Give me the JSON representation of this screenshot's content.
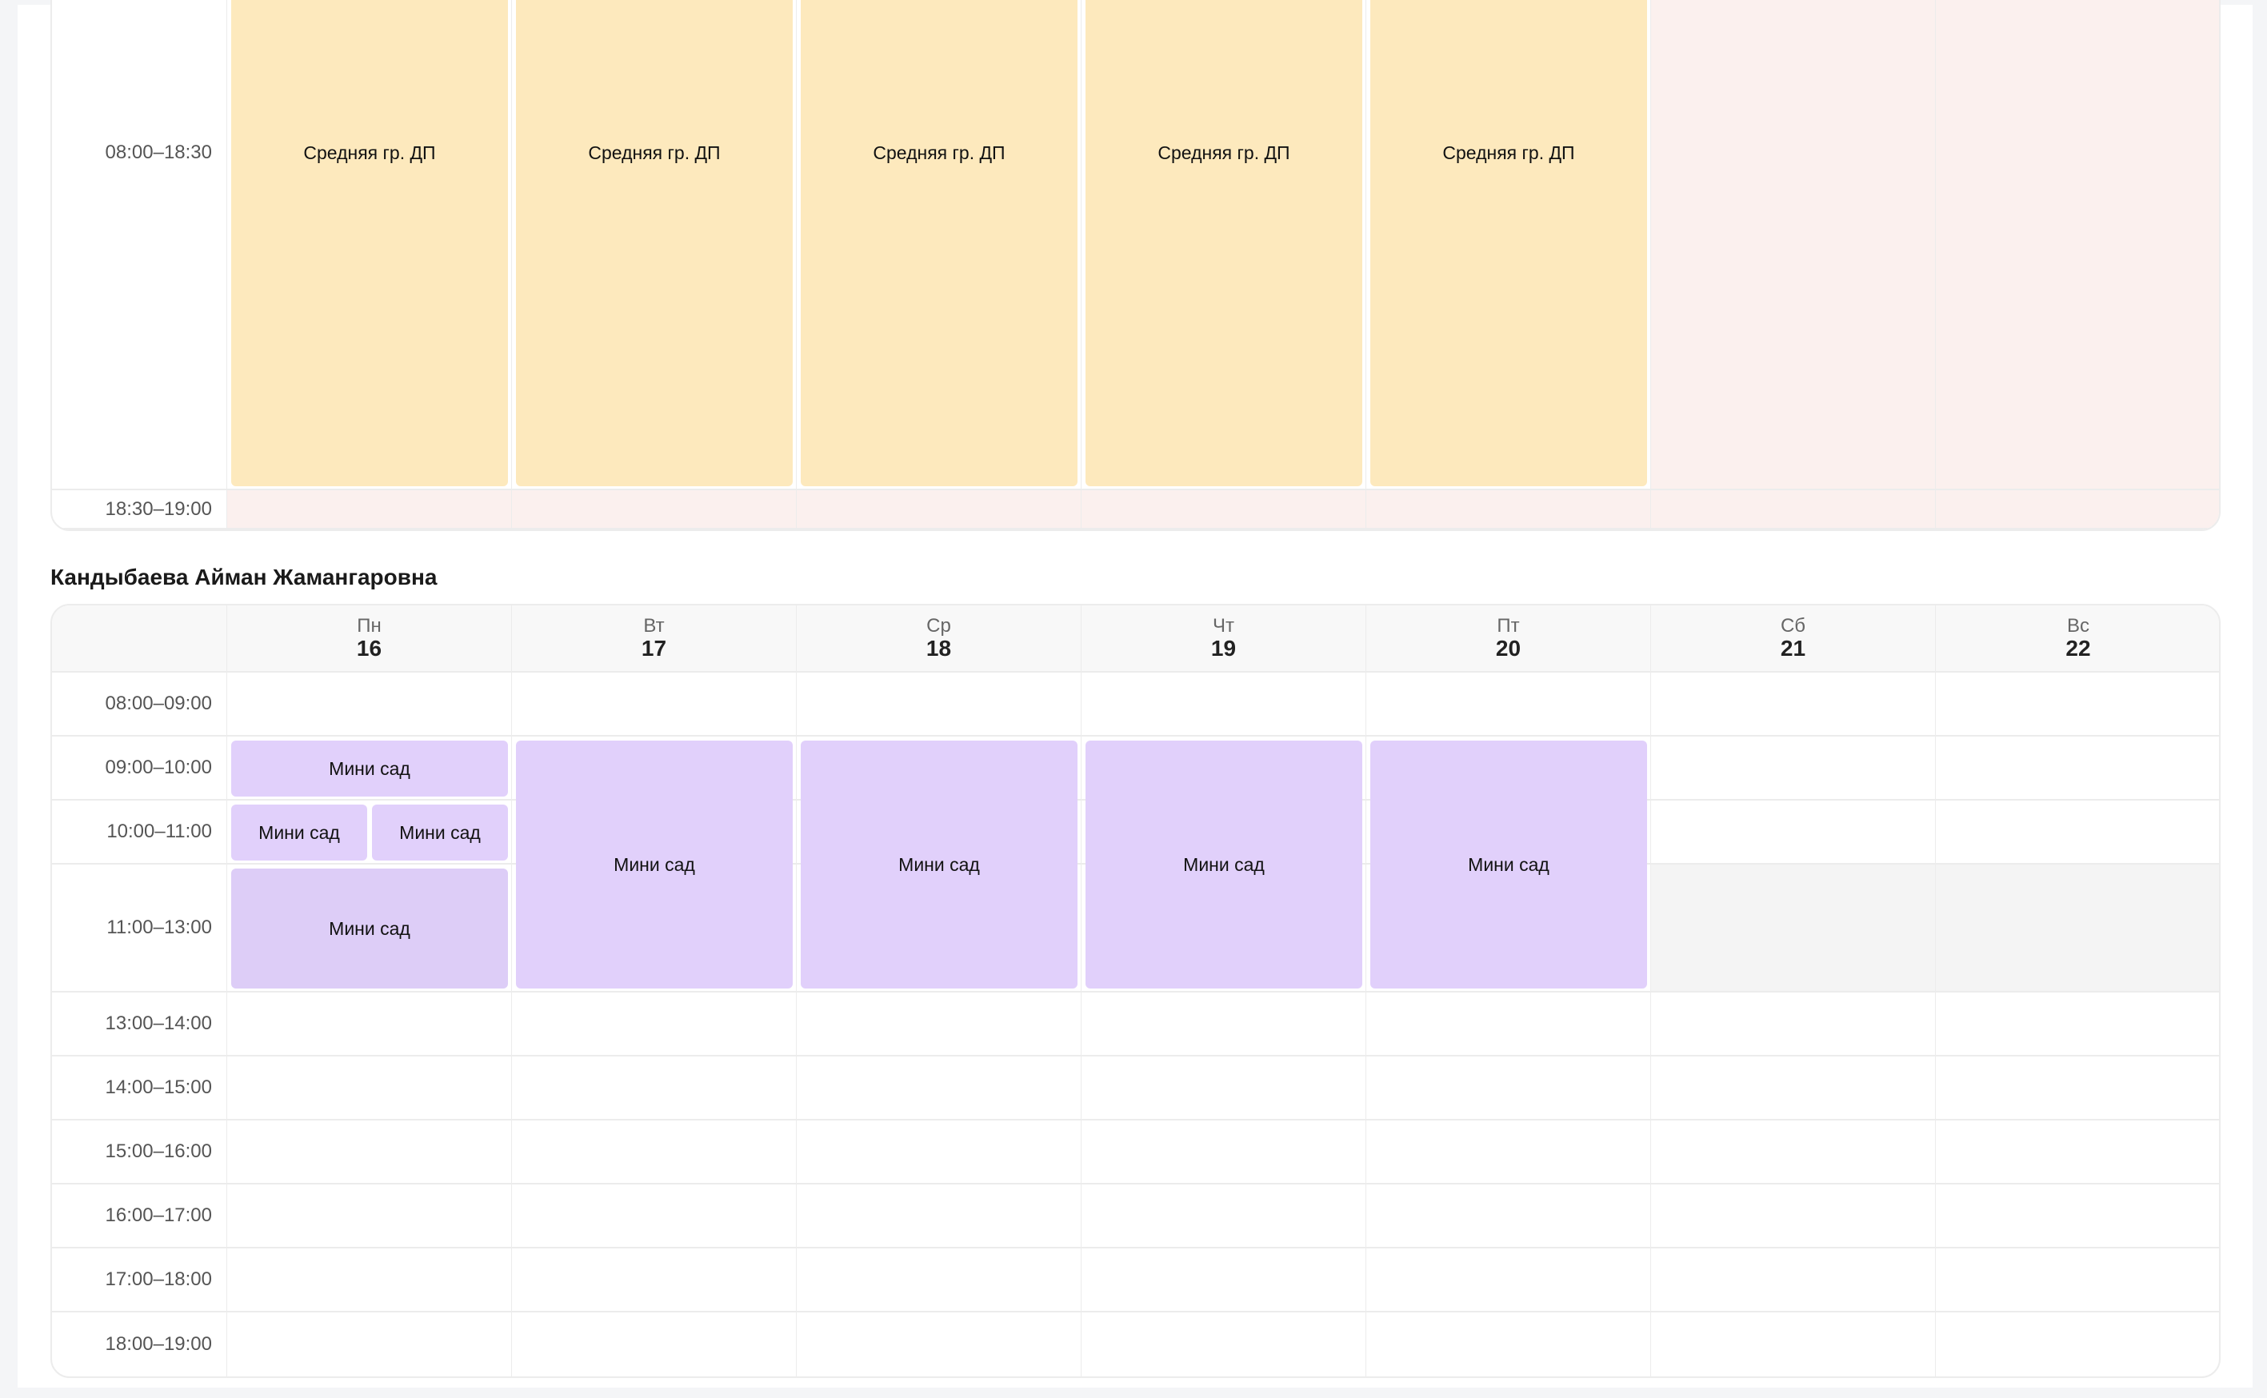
{
  "top_schedule": {
    "slots": [
      "08:00–18:30",
      "18:30–19:00"
    ],
    "days": 7,
    "closed_days": [
      5,
      6
    ],
    "closed_slots": [
      "18:30–19:00"
    ],
    "closed_color": "#fbf0ee",
    "event_color": "#fde9bd",
    "events": [
      {
        "day": 0,
        "start": "08:00–18:30",
        "end": "08:00–18:30",
        "label": "Средняя гр. ДП"
      },
      {
        "day": 1,
        "start": "08:00–18:30",
        "end": "08:00–18:30",
        "label": "Средняя гр. ДП"
      },
      {
        "day": 2,
        "start": "08:00–18:30",
        "end": "08:00–18:30",
        "label": "Средняя гр. ДП"
      },
      {
        "day": 3,
        "start": "08:00–18:30",
        "end": "08:00–18:30",
        "label": "Средняя гр. ДП"
      },
      {
        "day": 4,
        "start": "08:00–18:30",
        "end": "08:00–18:30",
        "label": "Средняя гр. ДП"
      }
    ]
  },
  "teacher": {
    "name": "Кандыбаева Айман Жамангаровна",
    "days": [
      {
        "weekday": "Пн",
        "date": "16"
      },
      {
        "weekday": "Вт",
        "date": "17"
      },
      {
        "weekday": "Ср",
        "date": "18"
      },
      {
        "weekday": "Чт",
        "date": "19"
      },
      {
        "weekday": "Пт",
        "date": "20"
      },
      {
        "weekday": "Сб",
        "date": "21"
      },
      {
        "weekday": "Вс",
        "date": "22"
      }
    ],
    "slots": [
      "08:00–09:00",
      "09:00–10:00",
      "10:00–11:00",
      "11:00–13:00",
      "13:00–14:00",
      "14:00–15:00",
      "15:00–16:00",
      "16:00–17:00",
      "17:00–18:00",
      "18:00–19:00"
    ],
    "blocked": [
      {
        "day": 5,
        "slot": "11:00–13:00"
      },
      {
        "day": 6,
        "slot": "11:00–13:00"
      }
    ],
    "blocked_color": "#f4f4f4",
    "event_color": "#e1d0fb",
    "events": [
      {
        "day": 0,
        "start": "09:00–10:00",
        "end": "09:00–10:00",
        "label": "Мини сад"
      },
      {
        "day": 0,
        "start": "10:00–11:00",
        "end": "10:00–11:00",
        "label": "Мини сад"
      },
      {
        "day": 0,
        "start": "10:00–11:00",
        "end": "10:00–11:00",
        "label": "Мини сад"
      },
      {
        "day": 0,
        "start": "11:00–13:00",
        "end": "11:00–13:00",
        "label": "Мини сад",
        "color": "#ddcdf7"
      },
      {
        "day": 1,
        "start": "09:00–10:00",
        "end": "11:00–13:00",
        "label": "Мини сад"
      },
      {
        "day": 2,
        "start": "09:00–10:00",
        "end": "11:00–13:00",
        "label": "Мини сад"
      },
      {
        "day": 3,
        "start": "09:00–10:00",
        "end": "11:00–13:00",
        "label": "Мини сад"
      },
      {
        "day": 4,
        "start": "09:00–10:00",
        "end": "11:00–13:00",
        "label": "Мини сад"
      }
    ]
  }
}
